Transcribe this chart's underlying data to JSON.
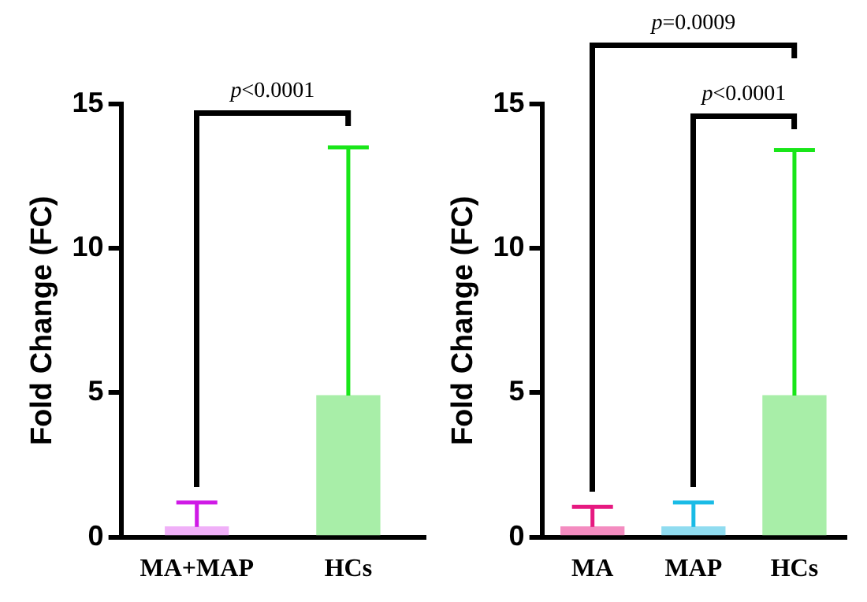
{
  "chart_data": [
    {
      "type": "bar",
      "ylabel": "Fold Change (FC)",
      "categories": [
        "MA+MAP",
        "HCs"
      ],
      "values": [
        0.35,
        4.9
      ],
      "colors": [
        "#f0b0f8",
        "#a8eea8"
      ],
      "errors": [
        [
          0.35,
          1.2
        ],
        [
          4.9,
          13.5
        ]
      ],
      "ylim": [
        0,
        15
      ],
      "yticks": [
        0,
        5,
        10,
        15
      ],
      "annotations": [
        "p<0.0001"
      ]
    },
    {
      "type": "bar",
      "ylabel": "Fold Change (FC)",
      "categories": [
        "MA",
        "MAP",
        "HCs"
      ],
      "values": [
        0.35,
        0.35,
        4.9
      ],
      "colors": [
        "#f48cc0",
        "#90dcf0",
        "#a8eea8"
      ],
      "errors": [
        [
          0.35,
          1.05
        ],
        [
          0.35,
          1.2
        ],
        [
          4.9,
          13.4
        ]
      ],
      "ylim": [
        0,
        15
      ],
      "yticks": [
        0,
        5,
        10,
        15
      ],
      "annotations": [
        "p=0.0009",
        "p<0.0001"
      ]
    }
  ]
}
